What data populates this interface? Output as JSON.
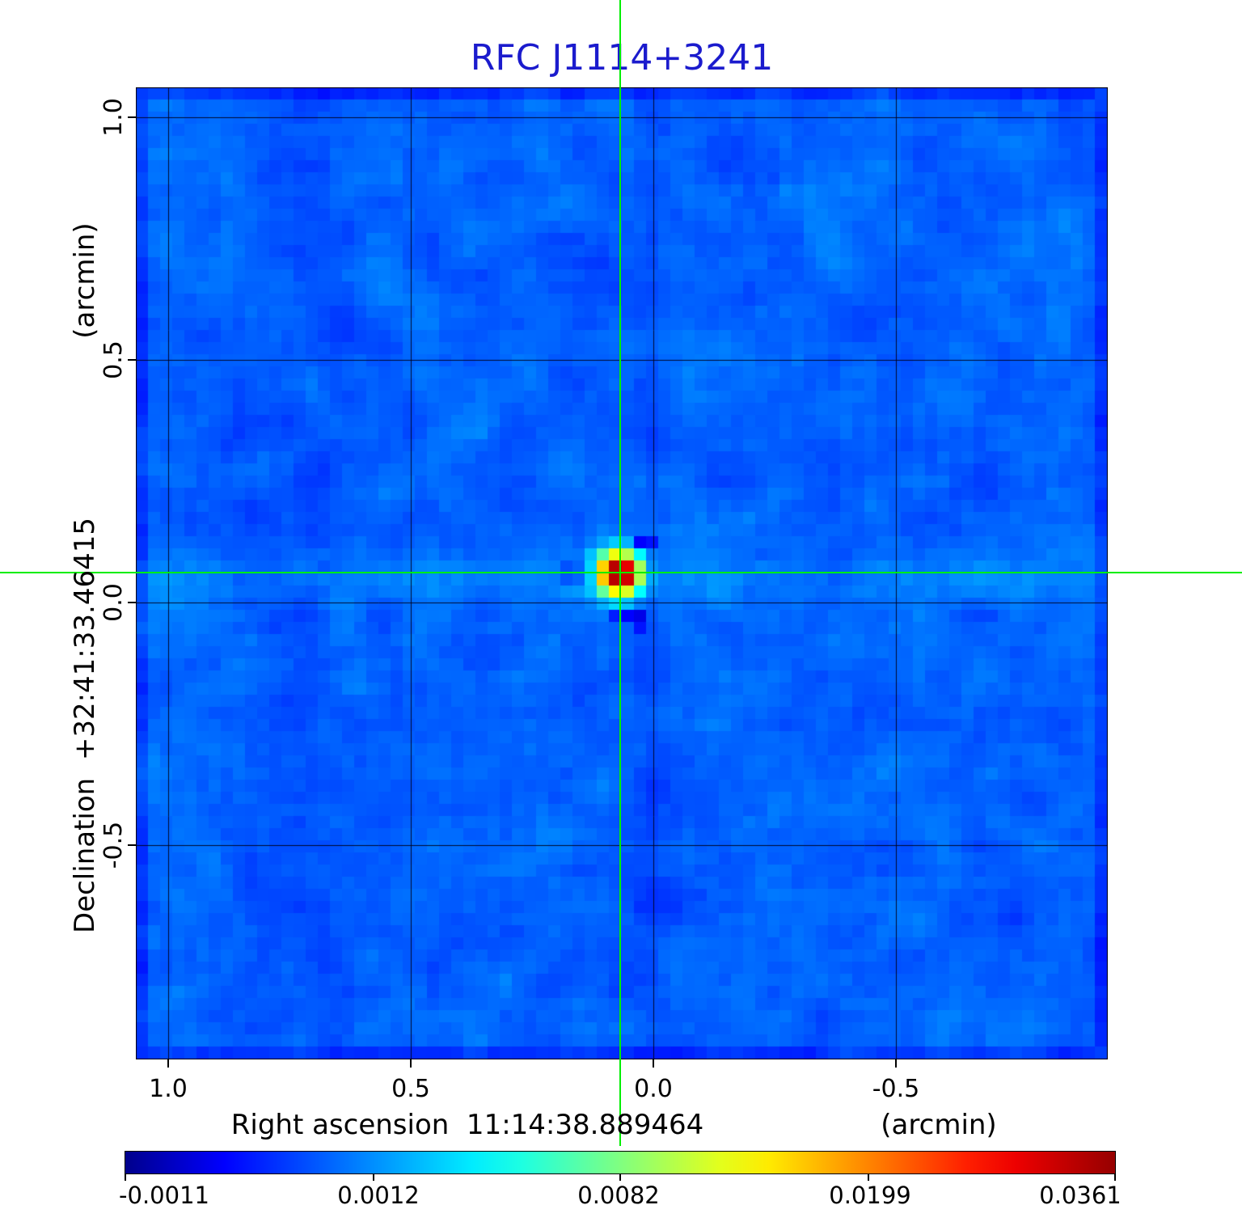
{
  "title": {
    "text": "RFC J1114+3241",
    "color": "#1b1bcd"
  },
  "axes": {
    "x": {
      "label": "Right ascension  11:14:38.889464",
      "unit": "(arcmin)",
      "tick_labels": [
        "1.0",
        "0.5",
        "0.0",
        "-0.5"
      ]
    },
    "y": {
      "label": "Declination  +32:41:33.46415",
      "unit": "(arcmin)",
      "tick_labels": [
        "1.0",
        "0.5",
        "0.0",
        "-0.5"
      ]
    }
  },
  "colorbar": {
    "tick_labels": [
      "-0.0011",
      "0.0012",
      "0.0082",
      "0.0199",
      "0.0361"
    ]
  },
  "crosshair": {
    "color": "#00ee00"
  },
  "chart_data": {
    "type": "heatmap",
    "title": "RFC J1114+3241",
    "xlabel": "Right ascension 11:14:38.889464 (arcmin)",
    "ylabel": "Declination +32:41:33.46415 (arcmin)",
    "x_ticks_arcmin": [
      1.0,
      0.5,
      0.0,
      -0.5
    ],
    "y_ticks_arcmin": [
      1.0,
      0.5,
      0.0,
      -0.5
    ],
    "x_range_arcmin": [
      1.07,
      -0.94
    ],
    "y_range_arcmin": [
      -0.94,
      1.06
    ],
    "grid": true,
    "colormap": "jet",
    "colorbar_values": [
      -0.0011,
      0.0012,
      0.0082,
      0.0199,
      0.0361
    ],
    "intensity_min": -0.0011,
    "intensity_max": 0.0361,
    "background_level": 0.0005,
    "source": {
      "ra_offset_arcmin": 0.07,
      "dec_offset_arcmin": 0.06,
      "peak": 0.0361
    },
    "crosshair_arcmin": {
      "ra": 0.07,
      "dec": 0.06
    },
    "noise_cells": 80
  }
}
